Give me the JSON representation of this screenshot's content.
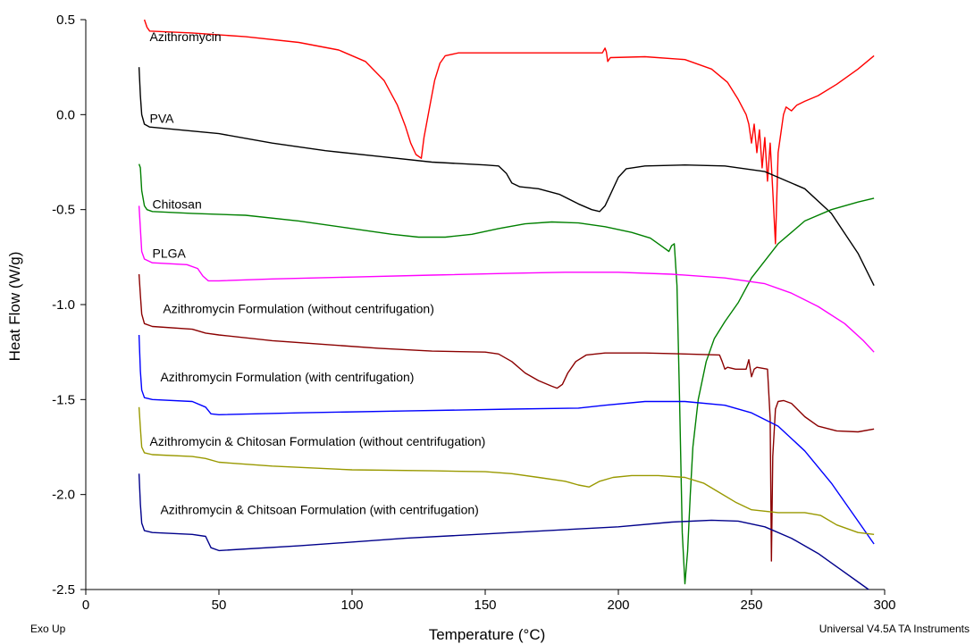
{
  "footer": {
    "left": "Exo Up",
    "right": "Universal V4.5A TA Instruments"
  },
  "chart_data": {
    "type": "line",
    "title": "",
    "xlabel": "Temperature (°C)",
    "ylabel": "Heat Flow (W/g)",
    "xlim": [
      0,
      300
    ],
    "ylim": [
      -2.5,
      0.5
    ],
    "x_ticks": [
      0,
      50,
      100,
      150,
      200,
      250,
      300
    ],
    "y_ticks": [
      0.5,
      0.0,
      -0.5,
      -1.0,
      -1.5,
      -2.0,
      -2.5
    ],
    "x_tick_labels": [
      "0",
      "50",
      "100",
      "150",
      "200",
      "250",
      "300"
    ],
    "y_tick_labels": [
      "0.5",
      "0.0",
      "-0.5",
      "-1.0",
      "-1.5",
      "-2.0",
      "-2.5"
    ],
    "grid": false,
    "series": [
      {
        "name": "Azithromycin",
        "color": "#ff0000",
        "label_at": [
          24,
          0.41
        ],
        "points": [
          [
            22,
            0.5
          ],
          [
            23,
            0.46
          ],
          [
            24,
            0.44
          ],
          [
            40,
            0.43
          ],
          [
            60,
            0.41
          ],
          [
            80,
            0.38
          ],
          [
            95,
            0.34
          ],
          [
            105,
            0.28
          ],
          [
            112,
            0.18
          ],
          [
            117,
            0.05
          ],
          [
            120,
            -0.06
          ],
          [
            122,
            -0.15
          ],
          [
            124,
            -0.21
          ],
          [
            126,
            -0.23
          ],
          [
            127,
            -0.12
          ],
          [
            129,
            0.03
          ],
          [
            131,
            0.18
          ],
          [
            133,
            0.27
          ],
          [
            135,
            0.31
          ],
          [
            140,
            0.325
          ],
          [
            160,
            0.325
          ],
          [
            180,
            0.325
          ],
          [
            194,
            0.325
          ],
          [
            195,
            0.35
          ],
          [
            195.5,
            0.33
          ],
          [
            196,
            0.28
          ],
          [
            197,
            0.3
          ],
          [
            210,
            0.305
          ],
          [
            225,
            0.29
          ],
          [
            235,
            0.24
          ],
          [
            241,
            0.17
          ],
          [
            245,
            0.08
          ],
          [
            248,
            0.0
          ],
          [
            249,
            -0.05
          ],
          [
            250,
            -0.15
          ],
          [
            251,
            -0.05
          ],
          [
            252,
            -0.2
          ],
          [
            253,
            -0.08
          ],
          [
            254,
            -0.28
          ],
          [
            255,
            -0.12
          ],
          [
            256,
            -0.35
          ],
          [
            257,
            -0.15
          ],
          [
            258,
            -0.4
          ],
          [
            259,
            -0.68
          ],
          [
            260,
            -0.2
          ],
          [
            261,
            -0.1
          ],
          [
            262,
            0.0
          ],
          [
            263,
            0.04
          ],
          [
            265,
            0.02
          ],
          [
            267,
            0.05
          ],
          [
            270,
            0.07
          ],
          [
            275,
            0.1
          ],
          [
            282,
            0.16
          ],
          [
            290,
            0.24
          ],
          [
            296,
            0.31
          ]
        ]
      },
      {
        "name": "PVA",
        "color": "#000000",
        "label_at": [
          24,
          -0.02
        ],
        "points": [
          [
            20,
            0.25
          ],
          [
            20.5,
            0.1
          ],
          [
            21,
            0.0
          ],
          [
            22,
            -0.05
          ],
          [
            24,
            -0.065
          ],
          [
            35,
            -0.08
          ],
          [
            50,
            -0.1
          ],
          [
            70,
            -0.15
          ],
          [
            90,
            -0.19
          ],
          [
            110,
            -0.22
          ],
          [
            130,
            -0.25
          ],
          [
            150,
            -0.265
          ],
          [
            155,
            -0.27
          ],
          [
            158,
            -0.31
          ],
          [
            160,
            -0.36
          ],
          [
            163,
            -0.38
          ],
          [
            170,
            -0.39
          ],
          [
            178,
            -0.42
          ],
          [
            185,
            -0.47
          ],
          [
            190,
            -0.5
          ],
          [
            193,
            -0.51
          ],
          [
            195,
            -0.48
          ],
          [
            197,
            -0.42
          ],
          [
            200,
            -0.33
          ],
          [
            203,
            -0.285
          ],
          [
            210,
            -0.27
          ],
          [
            225,
            -0.265
          ],
          [
            240,
            -0.27
          ],
          [
            255,
            -0.3
          ],
          [
            270,
            -0.39
          ],
          [
            280,
            -0.52
          ],
          [
            290,
            -0.73
          ],
          [
            296,
            -0.9
          ]
        ]
      },
      {
        "name": "Chitosan",
        "color": "#008000",
        "label_at": [
          25,
          -0.47
        ],
        "points": [
          [
            20,
            -0.26
          ],
          [
            20.5,
            -0.28
          ],
          [
            21,
            -0.4
          ],
          [
            22,
            -0.48
          ],
          [
            23,
            -0.5
          ],
          [
            25,
            -0.51
          ],
          [
            40,
            -0.52
          ],
          [
            60,
            -0.53
          ],
          [
            80,
            -0.56
          ],
          [
            100,
            -0.6
          ],
          [
            115,
            -0.63
          ],
          [
            125,
            -0.645
          ],
          [
            135,
            -0.645
          ],
          [
            145,
            -0.63
          ],
          [
            155,
            -0.6
          ],
          [
            165,
            -0.575
          ],
          [
            175,
            -0.565
          ],
          [
            185,
            -0.57
          ],
          [
            195,
            -0.59
          ],
          [
            205,
            -0.62
          ],
          [
            212,
            -0.65
          ],
          [
            217,
            -0.7
          ],
          [
            219,
            -0.72
          ],
          [
            220,
            -0.69
          ],
          [
            221,
            -0.68
          ],
          [
            222,
            -0.9
          ],
          [
            223,
            -1.5
          ],
          [
            224,
            -2.2
          ],
          [
            225,
            -2.47
          ],
          [
            226,
            -2.3
          ],
          [
            227,
            -2.0
          ],
          [
            228,
            -1.75
          ],
          [
            230,
            -1.5
          ],
          [
            233,
            -1.3
          ],
          [
            236,
            -1.18
          ],
          [
            240,
            -1.09
          ],
          [
            245,
            -0.99
          ],
          [
            250,
            -0.86
          ],
          [
            255,
            -0.77
          ],
          [
            260,
            -0.68
          ],
          [
            265,
            -0.62
          ],
          [
            270,
            -0.56
          ],
          [
            280,
            -0.5
          ],
          [
            290,
            -0.46
          ],
          [
            296,
            -0.44
          ]
        ]
      },
      {
        "name": "PLGA",
        "color": "#ff00ff",
        "label_at": [
          25,
          -0.73
        ],
        "points": [
          [
            20,
            -0.48
          ],
          [
            20.5,
            -0.6
          ],
          [
            21,
            -0.72
          ],
          [
            22,
            -0.76
          ],
          [
            25,
            -0.78
          ],
          [
            38,
            -0.79
          ],
          [
            42,
            -0.81
          ],
          [
            44,
            -0.85
          ],
          [
            46,
            -0.875
          ],
          [
            50,
            -0.875
          ],
          [
            70,
            -0.865
          ],
          [
            100,
            -0.855
          ],
          [
            130,
            -0.845
          ],
          [
            160,
            -0.835
          ],
          [
            180,
            -0.83
          ],
          [
            200,
            -0.83
          ],
          [
            220,
            -0.84
          ],
          [
            240,
            -0.86
          ],
          [
            255,
            -0.89
          ],
          [
            265,
            -0.94
          ],
          [
            275,
            -1.01
          ],
          [
            285,
            -1.1
          ],
          [
            292,
            -1.19
          ],
          [
            296,
            -1.25
          ]
        ]
      },
      {
        "name": "Azithromycin Formulation (without centrifugation)",
        "color": "#8b0000",
        "label_at": [
          29,
          -1.02
        ],
        "points": [
          [
            20,
            -0.84
          ],
          [
            20.5,
            -0.95
          ],
          [
            21,
            -1.05
          ],
          [
            22,
            -1.1
          ],
          [
            25,
            -1.115
          ],
          [
            40,
            -1.13
          ],
          [
            45,
            -1.15
          ],
          [
            50,
            -1.16
          ],
          [
            70,
            -1.19
          ],
          [
            90,
            -1.21
          ],
          [
            110,
            -1.23
          ],
          [
            130,
            -1.245
          ],
          [
            150,
            -1.25
          ],
          [
            155,
            -1.26
          ],
          [
            160,
            -1.3
          ],
          [
            165,
            -1.36
          ],
          [
            170,
            -1.4
          ],
          [
            175,
            -1.43
          ],
          [
            177,
            -1.44
          ],
          [
            179,
            -1.42
          ],
          [
            181,
            -1.36
          ],
          [
            184,
            -1.3
          ],
          [
            188,
            -1.265
          ],
          [
            195,
            -1.255
          ],
          [
            210,
            -1.255
          ],
          [
            225,
            -1.26
          ],
          [
            238,
            -1.265
          ],
          [
            239,
            -1.3
          ],
          [
            240,
            -1.34
          ],
          [
            241,
            -1.33
          ],
          [
            244,
            -1.34
          ],
          [
            248,
            -1.34
          ],
          [
            249,
            -1.29
          ],
          [
            250,
            -1.38
          ],
          [
            251,
            -1.34
          ],
          [
            252,
            -1.33
          ],
          [
            256,
            -1.34
          ],
          [
            257,
            -1.6
          ],
          [
            257.5,
            -2.35
          ],
          [
            258,
            -1.8
          ],
          [
            259,
            -1.55
          ],
          [
            260,
            -1.51
          ],
          [
            262,
            -1.505
          ],
          [
            265,
            -1.52
          ],
          [
            270,
            -1.59
          ],
          [
            275,
            -1.64
          ],
          [
            282,
            -1.665
          ],
          [
            290,
            -1.67
          ],
          [
            296,
            -1.655
          ]
        ]
      },
      {
        "name": "Azithromycin Formulation (with centrifugation)",
        "color": "#0000ff",
        "label_at": [
          28,
          -1.38
        ],
        "points": [
          [
            20,
            -1.16
          ],
          [
            20.5,
            -1.35
          ],
          [
            21,
            -1.45
          ],
          [
            22,
            -1.49
          ],
          [
            25,
            -1.5
          ],
          [
            40,
            -1.51
          ],
          [
            45,
            -1.54
          ],
          [
            47,
            -1.575
          ],
          [
            50,
            -1.58
          ],
          [
            80,
            -1.57
          ],
          [
            120,
            -1.56
          ],
          [
            160,
            -1.55
          ],
          [
            185,
            -1.545
          ],
          [
            195,
            -1.53
          ],
          [
            210,
            -1.51
          ],
          [
            225,
            -1.51
          ],
          [
            240,
            -1.53
          ],
          [
            250,
            -1.57
          ],
          [
            260,
            -1.64
          ],
          [
            270,
            -1.77
          ],
          [
            280,
            -1.94
          ],
          [
            290,
            -2.14
          ],
          [
            296,
            -2.26
          ]
        ]
      },
      {
        "name": "Azithromycin & Chitosan Formulation (without centrifugation)",
        "color": "#999900",
        "label_at": [
          24,
          -1.72
        ],
        "points": [
          [
            20,
            -1.54
          ],
          [
            20.5,
            -1.65
          ],
          [
            21,
            -1.75
          ],
          [
            22,
            -1.78
          ],
          [
            25,
            -1.79
          ],
          [
            40,
            -1.8
          ],
          [
            45,
            -1.81
          ],
          [
            50,
            -1.83
          ],
          [
            70,
            -1.85
          ],
          [
            100,
            -1.87
          ],
          [
            130,
            -1.875
          ],
          [
            150,
            -1.88
          ],
          [
            160,
            -1.89
          ],
          [
            170,
            -1.91
          ],
          [
            180,
            -1.93
          ],
          [
            185,
            -1.95
          ],
          [
            189,
            -1.96
          ],
          [
            193,
            -1.93
          ],
          [
            198,
            -1.91
          ],
          [
            205,
            -1.9
          ],
          [
            215,
            -1.9
          ],
          [
            225,
            -1.91
          ],
          [
            232,
            -1.94
          ],
          [
            238,
            -1.99
          ],
          [
            244,
            -2.04
          ],
          [
            250,
            -2.08
          ],
          [
            260,
            -2.095
          ],
          [
            270,
            -2.095
          ],
          [
            276,
            -2.11
          ],
          [
            282,
            -2.16
          ],
          [
            290,
            -2.2
          ],
          [
            296,
            -2.21
          ]
        ]
      },
      {
        "name": "Azithromycin & Chitsoan Formulation (with centrifugation)",
        "color": "#00008b",
        "label_at": [
          28,
          -2.08
        ],
        "points": [
          [
            20,
            -1.89
          ],
          [
            20.5,
            -2.05
          ],
          [
            21,
            -2.15
          ],
          [
            22,
            -2.19
          ],
          [
            25,
            -2.2
          ],
          [
            40,
            -2.21
          ],
          [
            45,
            -2.22
          ],
          [
            47,
            -2.28
          ],
          [
            50,
            -2.295
          ],
          [
            80,
            -2.27
          ],
          [
            120,
            -2.23
          ],
          [
            160,
            -2.2
          ],
          [
            200,
            -2.17
          ],
          [
            220,
            -2.145
          ],
          [
            235,
            -2.135
          ],
          [
            245,
            -2.14
          ],
          [
            255,
            -2.17
          ],
          [
            265,
            -2.23
          ],
          [
            275,
            -2.31
          ],
          [
            283,
            -2.39
          ],
          [
            290,
            -2.46
          ],
          [
            294,
            -2.5
          ]
        ]
      }
    ]
  }
}
